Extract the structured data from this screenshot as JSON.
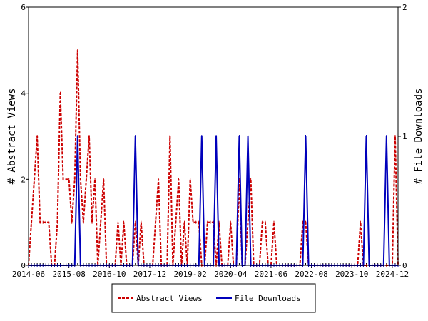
{
  "chart_data": {
    "type": "line",
    "x_tick_labels": [
      "2014-06",
      "2015-08",
      "2016-10",
      "2017-12",
      "2019-02",
      "2020-04",
      "2021-06",
      "2022-08",
      "2023-10",
      "2024-12"
    ],
    "left_axis": {
      "label": "# Abstract Views",
      "ylim": [
        0,
        6
      ],
      "ticks": [
        "0",
        "2",
        "4",
        "6"
      ]
    },
    "right_axis": {
      "label": "# File Downloads",
      "ylim": [
        0,
        2
      ],
      "ticks": [
        "0",
        "1",
        "2"
      ]
    },
    "x_range_months": [
      0,
      128
    ],
    "legend": {
      "placement": "bottom",
      "entries": [
        "Abstract Views",
        "File Downloads"
      ]
    },
    "series": [
      {
        "name": "Abstract Views",
        "axis": "left",
        "color": "#cc0000",
        "dash": true,
        "x": [
          0,
          1,
          2,
          3,
          4,
          5,
          6,
          7,
          8,
          9,
          10,
          11,
          12,
          13,
          14,
          15,
          16,
          17,
          18,
          19,
          20,
          21,
          22,
          23,
          24,
          25,
          26,
          27,
          28,
          29,
          30,
          31,
          32,
          33,
          34,
          35,
          36,
          37,
          38,
          39,
          40,
          41,
          42,
          43,
          44,
          45,
          46,
          47,
          48,
          49,
          50,
          51,
          52,
          53,
          54,
          55,
          56,
          57,
          58,
          59,
          60,
          61,
          62,
          63,
          64,
          65,
          66,
          67,
          68,
          69,
          70,
          71,
          72,
          73,
          74,
          75,
          76,
          77,
          78,
          79,
          80,
          81,
          82,
          83,
          84,
          85,
          86,
          87,
          88,
          89,
          90,
          91,
          92,
          93,
          94,
          95,
          96,
          97,
          98,
          99,
          100,
          101,
          102,
          103,
          104,
          105,
          106,
          107,
          108,
          109,
          110,
          111,
          112,
          113,
          114,
          115,
          116,
          117,
          118,
          119,
          120,
          121,
          122,
          123,
          124,
          125,
          126,
          127,
          128
        ],
        "values": [
          0,
          1,
          2,
          3,
          1,
          1,
          1,
          1,
          0,
          0,
          1,
          4,
          2,
          2,
          2,
          1,
          2,
          5,
          2,
          1,
          2,
          3,
          1,
          2,
          0,
          1,
          2,
          0,
          0,
          0,
          0,
          1,
          0,
          1,
          0,
          0,
          0,
          1,
          0,
          1,
          0,
          0,
          0,
          0,
          1,
          2,
          0,
          0,
          0,
          3,
          0,
          1,
          2,
          0,
          1,
          0,
          2,
          1,
          1,
          1,
          0,
          0,
          1,
          1,
          1,
          0,
          1,
          0,
          0,
          0,
          1,
          0,
          0,
          2,
          0,
          0,
          1,
          2,
          0,
          0,
          0,
          1,
          1,
          0,
          0,
          1,
          0,
          0,
          0,
          0,
          0,
          0,
          0,
          0,
          0,
          1,
          1,
          0,
          0,
          0,
          0,
          0,
          0,
          0,
          0,
          0,
          0,
          0,
          0,
          0,
          0,
          0,
          0,
          0,
          0,
          1,
          0,
          0,
          0,
          0,
          0,
          0,
          0,
          0,
          0,
          0,
          0,
          3,
          0
        ]
      },
      {
        "name": "File Downloads",
        "axis": "right",
        "color": "#0000bb",
        "dash": false,
        "x": [
          0,
          1,
          2,
          3,
          4,
          5,
          6,
          7,
          8,
          9,
          10,
          11,
          12,
          13,
          14,
          15,
          16,
          17,
          18,
          19,
          20,
          21,
          22,
          23,
          24,
          25,
          26,
          27,
          28,
          29,
          30,
          31,
          32,
          33,
          34,
          35,
          36,
          37,
          38,
          39,
          40,
          41,
          42,
          43,
          44,
          45,
          46,
          47,
          48,
          49,
          50,
          51,
          52,
          53,
          54,
          55,
          56,
          57,
          58,
          59,
          60,
          61,
          62,
          63,
          64,
          65,
          66,
          67,
          68,
          69,
          70,
          71,
          72,
          73,
          74,
          75,
          76,
          77,
          78,
          79,
          80,
          81,
          82,
          83,
          84,
          85,
          86,
          87,
          88,
          89,
          90,
          91,
          92,
          93,
          94,
          95,
          96,
          97,
          98,
          99,
          100,
          101,
          102,
          103,
          104,
          105,
          106,
          107,
          108,
          109,
          110,
          111,
          112,
          113,
          114,
          115,
          116,
          117,
          118,
          119,
          120,
          121,
          122,
          123,
          124,
          125,
          126,
          127,
          128
        ],
        "values": [
          0,
          0,
          0,
          0,
          0,
          0,
          0,
          0,
          0,
          0,
          0,
          0,
          0,
          0,
          0,
          0,
          0,
          1,
          0,
          0,
          0,
          0,
          0,
          0,
          0,
          0,
          0,
          0,
          0,
          0,
          0,
          0,
          0,
          0,
          0,
          0,
          0,
          1,
          0,
          0,
          0,
          0,
          0,
          0,
          0,
          0,
          0,
          0,
          0,
          0,
          0,
          0,
          0,
          0,
          0,
          0,
          0,
          0,
          0,
          0,
          1,
          0,
          0,
          0,
          0,
          1,
          0,
          0,
          0,
          0,
          0,
          0,
          0,
          1,
          0,
          0,
          1,
          0,
          0,
          0,
          0,
          0,
          0,
          0,
          0,
          0,
          0,
          0,
          0,
          0,
          0,
          0,
          0,
          0,
          0,
          0,
          1,
          0,
          0,
          0,
          0,
          0,
          0,
          0,
          0,
          0,
          0,
          0,
          0,
          0,
          0,
          0,
          0,
          0,
          0,
          0,
          0,
          1,
          0,
          0,
          0,
          0,
          0,
          0,
          1,
          0,
          0,
          0,
          0
        ]
      }
    ]
  }
}
